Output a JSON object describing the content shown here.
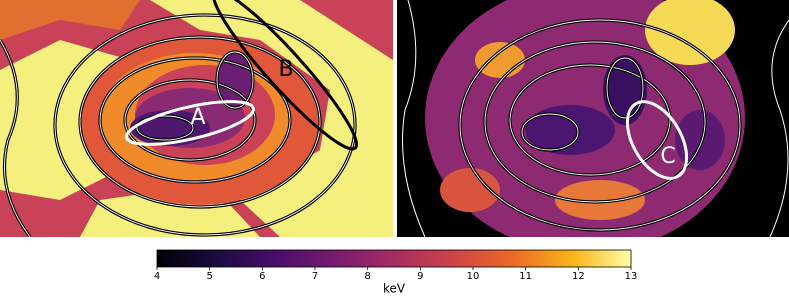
{
  "chart_data": {
    "type": "heatmap",
    "regions": [
      "A",
      "B",
      "C"
    ],
    "colorbar": {
      "label": "keV",
      "lim": [
        4,
        13
      ],
      "ticks": [
        4,
        5,
        6,
        7,
        8,
        9,
        10,
        11,
        12,
        13
      ]
    }
  }
}
